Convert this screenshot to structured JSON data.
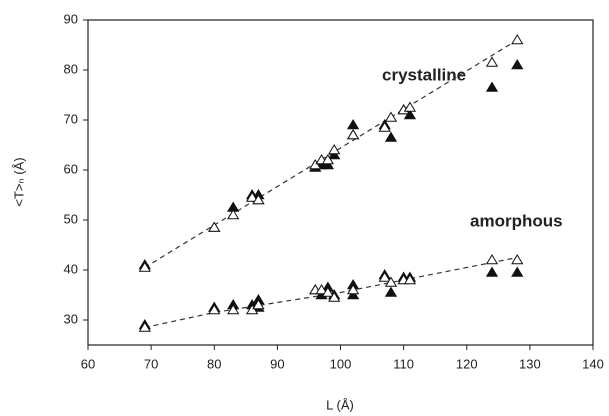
{
  "chart_data": {
    "type": "scatter",
    "x_label": "L (Å)",
    "y_label": "<T>ₙ (Å)",
    "annotations": [
      "crystalline",
      "amorphous"
    ],
    "xlim": [
      60,
      140
    ],
    "xticks": [
      60,
      70,
      80,
      90,
      100,
      110,
      120,
      130,
      140
    ],
    "ylim": [
      25,
      90
    ],
    "yticks": [
      30,
      40,
      50,
      60,
      70,
      80,
      90
    ],
    "series": [
      {
        "marker": "filled",
        "color": "#111111",
        "x": [
          69,
          80,
          83,
          86,
          87,
          87,
          96,
          97,
          98,
          99,
          102,
          102,
          107,
          108,
          110,
          111,
          124,
          128
        ],
        "values": [
          41,
          48.5,
          52.5,
          55,
          55,
          54,
          60.5,
          61,
          61,
          63,
          69,
          67,
          69,
          66.5,
          72,
          71,
          76.5,
          81
        ]
      },
      {
        "marker": "open",
        "color": "#111111",
        "x": [
          69,
          80,
          83,
          86,
          87,
          96,
          97,
          98,
          99,
          102,
          107,
          108,
          110,
          111,
          124,
          128
        ],
        "values": [
          40.5,
          48.5,
          51,
          54.5,
          54,
          61,
          62,
          62,
          64,
          67,
          68.5,
          70.5,
          72,
          72.5,
          81.5,
          86
        ]
      },
      {
        "marker": "filled",
        "color": "#111111",
        "x": [
          69,
          80,
          83,
          86,
          87,
          87,
          96,
          97,
          98,
          99,
          102,
          102,
          107,
          108,
          110,
          111,
          124,
          128
        ],
        "values": [
          29,
          32.5,
          33,
          33,
          34,
          32.5,
          36,
          35,
          36.5,
          35,
          37,
          35,
          39,
          35.5,
          38.5,
          38.5,
          39.5,
          39.5
        ]
      },
      {
        "marker": "open",
        "color": "#111111",
        "x": [
          69,
          80,
          83,
          86,
          87,
          96,
          97,
          98,
          99,
          102,
          107,
          108,
          110,
          111,
          124,
          128
        ],
        "values": [
          28.5,
          32,
          32,
          32,
          33,
          36,
          36,
          35.5,
          34.5,
          36,
          38.5,
          37.5,
          38,
          38,
          42,
          42
        ]
      }
    ],
    "fits": [
      {
        "x": [
          69,
          128
        ],
        "values": [
          40.5,
          86
        ]
      },
      {
        "x": [
          69,
          80,
          90,
          100,
          110,
          120,
          128
        ],
        "values": [
          28.5,
          31.5,
          33.5,
          35.5,
          38,
          40.5,
          42.5
        ]
      }
    ]
  }
}
